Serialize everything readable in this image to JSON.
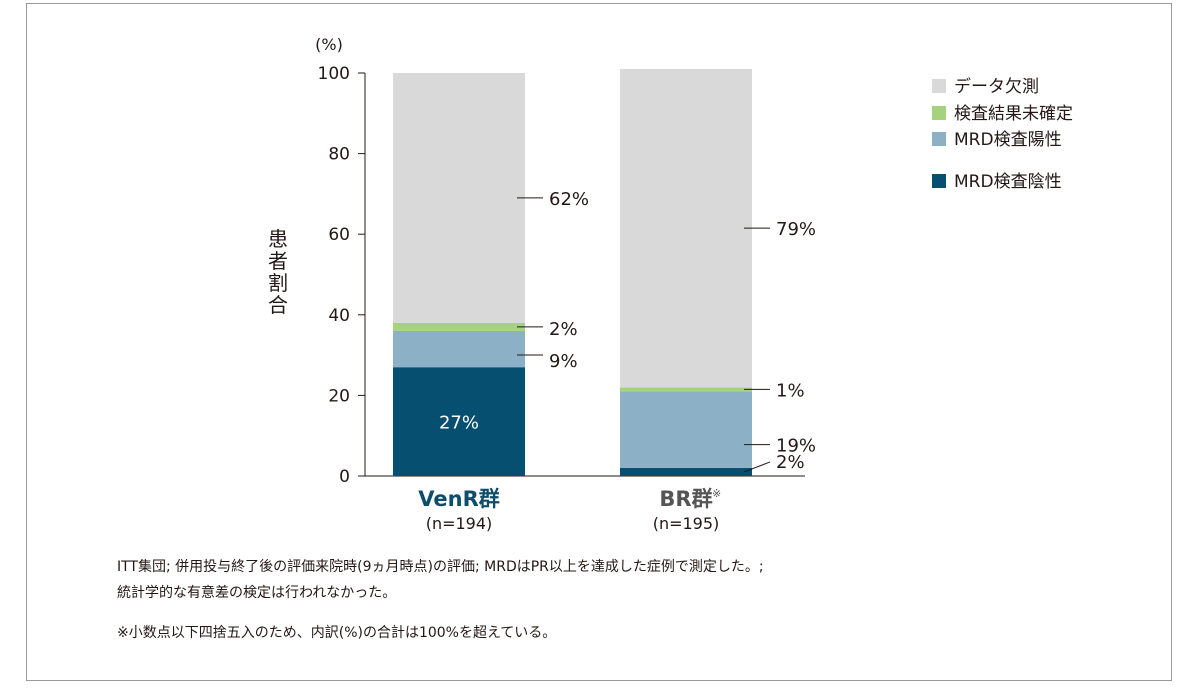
{
  "chart_data": {
    "type": "bar",
    "stacked": true,
    "unit_label": "(%)",
    "ylabel": "患者割合",
    "ylim": [
      0,
      100
    ],
    "yticks": [
      0,
      20,
      40,
      60,
      80,
      100
    ],
    "categories": [
      {
        "name": "VenR群",
        "marker": "",
        "sub": "(n=194)",
        "color": "#0e4d6c"
      },
      {
        "name": "BR群",
        "marker": "※",
        "sub": "(n=195)",
        "color": "#555555"
      }
    ],
    "series": [
      {
        "name": "MRD検査陰性",
        "color": "#064f70",
        "values": [
          27,
          2
        ],
        "labels": [
          "27%",
          "2%"
        ]
      },
      {
        "name": "MRD検査陽性",
        "color": "#8cb1c7",
        "values": [
          9,
          19
        ],
        "labels": [
          "9%",
          "19%"
        ]
      },
      {
        "name": "検査結果未確定",
        "color": "#a6d27e",
        "values": [
          2,
          1
        ],
        "labels": [
          "2%",
          "1%"
        ]
      },
      {
        "name": "データ欠測",
        "color": "#d9d9d9",
        "values": [
          62,
          79
        ],
        "labels": [
          "62%",
          "79%"
        ]
      }
    ],
    "legend_order": [
      "データ欠測",
      "検査結果未確定",
      "MRD検査陽性",
      "MRD検査陰性"
    ],
    "legend_position": "top-right"
  },
  "notes": {
    "line1": "ITT集団; 併用投与終了後の評価来院時(9ヵ月時点)の評価; MRDはPR以上を達成した症例で測定した。;",
    "line2": "統計学的な有意差の検定は行われなかった。",
    "line3": "※小数点以下四捨五入のため、内訳(%)の合計は100%を超えている。"
  }
}
